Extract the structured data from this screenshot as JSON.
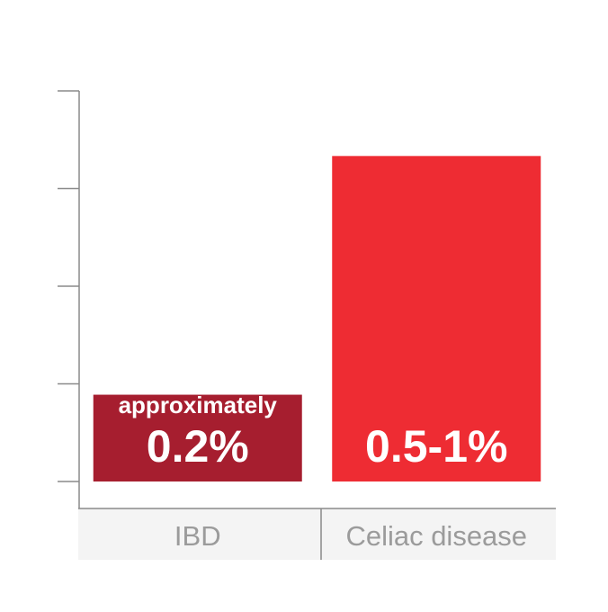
{
  "chart_data": {
    "type": "bar",
    "categories": [
      "IBD",
      "Celiac disease"
    ],
    "values": [
      0.2,
      0.75
    ],
    "value_labels": [
      {
        "prefix": "approximately",
        "text": "0.2%"
      },
      {
        "prefix": "",
        "text": "0.5-1%"
      }
    ],
    "bar_colors": [
      "#a61e2f",
      "#ee2c33"
    ],
    "ylim": [
      0,
      0.9
    ],
    "yticks_count": 5,
    "grid": false,
    "title": "",
    "xlabel": "",
    "ylabel": ""
  }
}
